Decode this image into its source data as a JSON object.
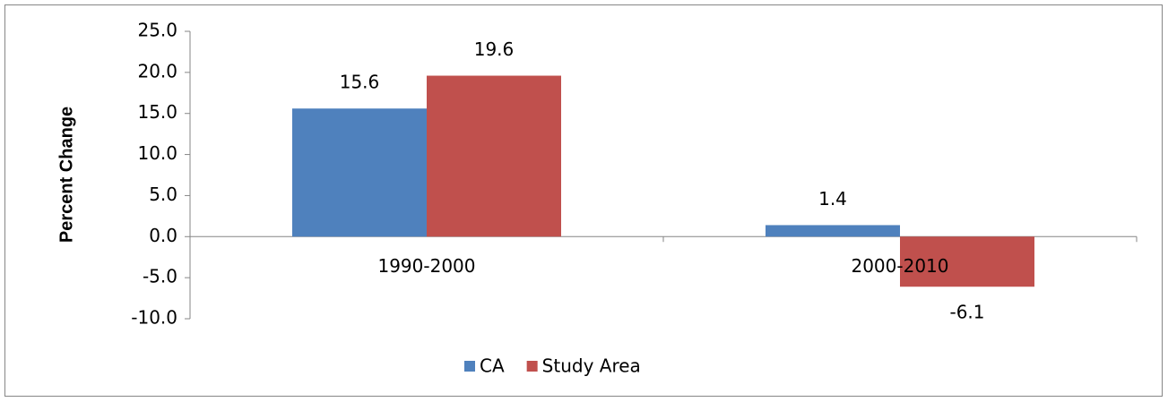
{
  "chart_data": {
    "type": "bar",
    "y_label": "Percent Change",
    "categories": [
      "1990-2000",
      "2000-2010"
    ],
    "series": [
      {
        "name": "CA",
        "color": "#4f81bd",
        "values": [
          15.6,
          1.4
        ]
      },
      {
        "name": "Study Area",
        "color": "#c0504d",
        "values": [
          19.6,
          -6.1
        ]
      }
    ],
    "ylim": [
      -10,
      25
    ],
    "yticks": [
      {
        "value": -10,
        "label": "-10.0"
      },
      {
        "value": -5,
        "label": "-5.0"
      },
      {
        "value": 0,
        "label": "0.0"
      },
      {
        "value": 5,
        "label": "5.0"
      },
      {
        "value": 10,
        "label": "10.0"
      },
      {
        "value": 15,
        "label": "15.0"
      },
      {
        "value": 20,
        "label": "20.0"
      },
      {
        "value": 25,
        "label": "25.0"
      }
    ],
    "grid": false,
    "legend": "bottom"
  }
}
